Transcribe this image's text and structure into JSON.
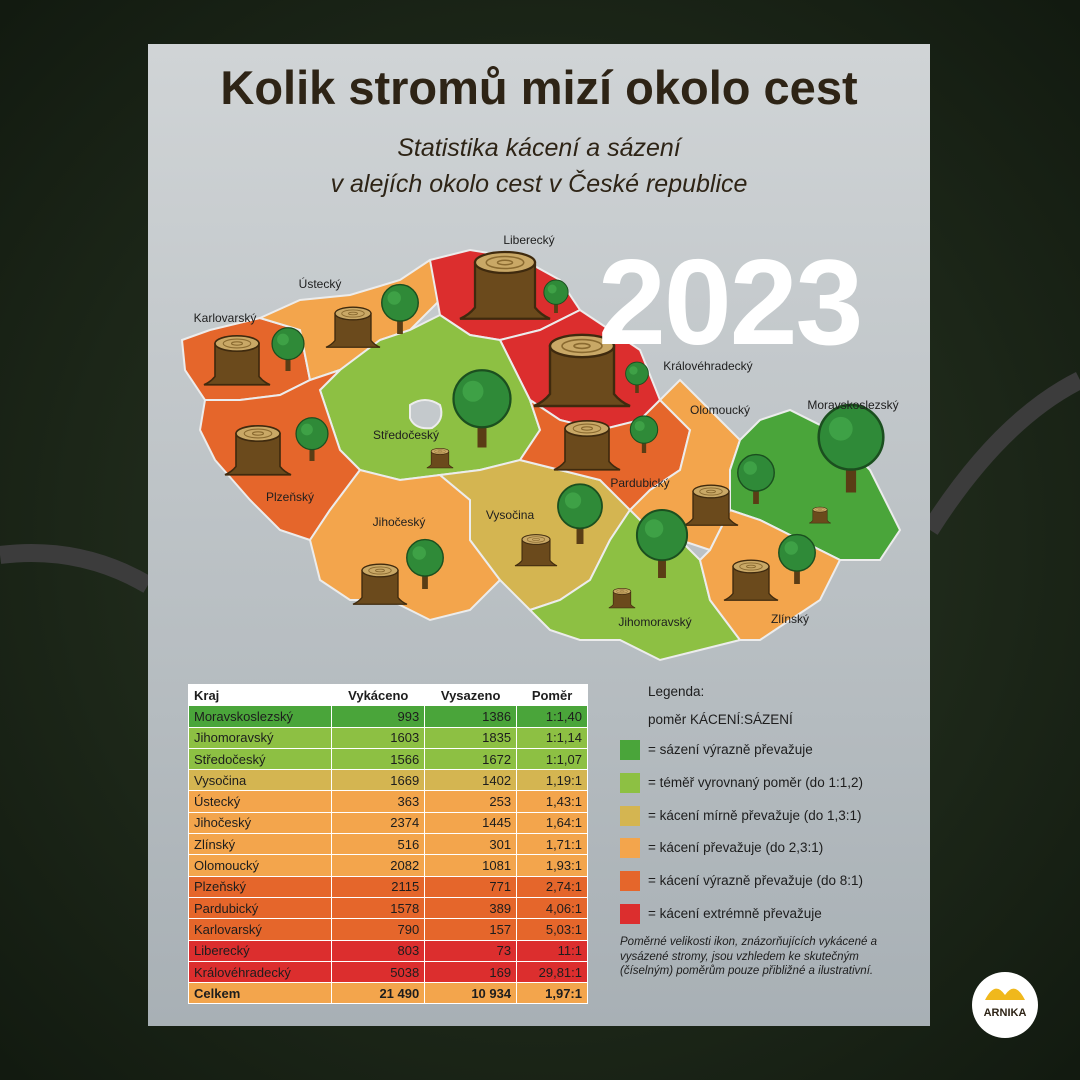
{
  "header": {
    "title": "Kolik stromů mizí okolo cest",
    "subtitle": [
      "Statistika kácení a sázení",
      "v alejích okolo cest v České republice"
    ],
    "year": "2023"
  },
  "map": {
    "labels": [
      "Liberecký",
      "Ústecký",
      "Karlovarský",
      "Královéhradecký",
      "Olomoucký",
      "Moravskoslezský",
      "Středočeský",
      "Pardubický",
      "Plzeňský",
      "Jihočeský",
      "Vysočina",
      "Jihomoravský",
      "Zlínský"
    ]
  },
  "table": {
    "columns": [
      "Kraj",
      "Vykáceno",
      "Vysazeno",
      "Poměr"
    ],
    "rows": [
      [
        "Moravskoslezský",
        "993",
        "1386",
        "1:1,40"
      ],
      [
        "Jihomoravský",
        "1603",
        "1835",
        "1:1,14"
      ],
      [
        "Středočeský",
        "1566",
        "1672",
        "1:1,07"
      ],
      [
        "Vysočina",
        "1669",
        "1402",
        "1,19:1"
      ],
      [
        "Ústecký",
        "363",
        "253",
        "1,43:1"
      ],
      [
        "Jihočeský",
        "2374",
        "1445",
        "1,64:1"
      ],
      [
        "Zlínský",
        "516",
        "301",
        "1,71:1"
      ],
      [
        "Olomoucký",
        "2082",
        "1081",
        "1,93:1"
      ],
      [
        "Plzeňský",
        "2115",
        "771",
        "2,74:1"
      ],
      [
        "Pardubický",
        "1578",
        "389",
        "4,06:1"
      ],
      [
        "Karlovarský",
        "790",
        "157",
        "5,03:1"
      ],
      [
        "Liberecký",
        "803",
        "73",
        "11:1"
      ],
      [
        "Královéhradecký",
        "5038",
        "169",
        "29,81:1"
      ],
      [
        "Celkem",
        "21 490",
        "10 934",
        "1,97:1"
      ]
    ]
  },
  "legend": {
    "title": "Legenda:",
    "subtitle": "poměr KÁCENÍ:SÁZENÍ",
    "items": [
      "= sázení výrazně převažuje",
      "= téměř vyrovnaný poměr (do 1:1,2)",
      "= kácení mírně převažuje (do 1,3:1)",
      "= kácení převažuje (do 2,3:1)",
      "= kácení výrazně převažuje (do 8:1)",
      "= kácení extrémně převažuje"
    ]
  },
  "note": "Poměrné velikosti ikon, znázorňujících vykácené a vysázené stromy, jsou vzhledem ke skutečným (číselným) poměrům pouze přibližné a ilustrativní.",
  "logo": "ARNIKA"
}
